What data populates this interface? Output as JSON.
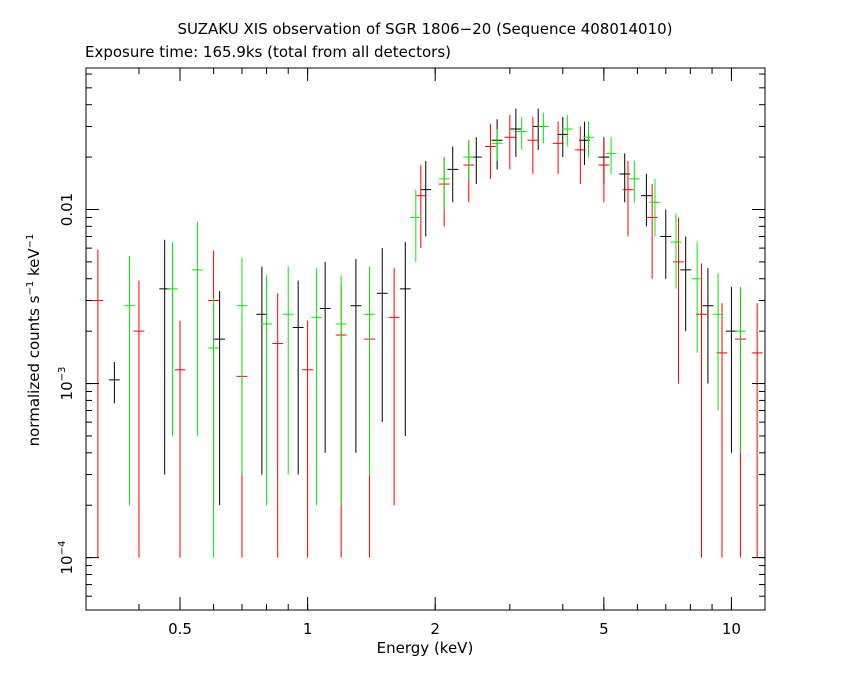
{
  "chart_data": {
    "type": "scatter",
    "title": "SUZAKU XIS observation of SGR 1806−20 (Sequence 408014010)",
    "subtitle": "Exposure time: 165.9ks (total from all detectors)",
    "xlabel": "Energy (keV)",
    "ylabel": {
      "main": "normalized counts s",
      "exp1": "−1",
      "mid": " keV",
      "exp2": "−1"
    },
    "x_scale": "log",
    "y_scale": "log",
    "xlim": [
      0.3,
      12.0
    ],
    "ylim": [
      5e-05,
      0.065
    ],
    "x_ticks": [
      {
        "value": 0.5,
        "label": "0.5"
      },
      {
        "value": 1,
        "label": "1"
      },
      {
        "value": 2,
        "label": "2"
      },
      {
        "value": 5,
        "label": "5"
      },
      {
        "value": 10,
        "label": "10"
      }
    ],
    "y_ticks": [
      {
        "value": 0.0001,
        "base": "10",
        "exp": "−4"
      },
      {
        "value": 0.001,
        "base": "10",
        "exp": "−3"
      },
      {
        "value": 0.01,
        "label": "0.01"
      }
    ],
    "series": [
      {
        "color": "#000000",
        "points": [
          [
            0.35,
            0.00105,
            0.00028
          ],
          [
            0.46,
            0.0035,
            0.0032
          ],
          [
            0.62,
            0.0018,
            0.0016
          ],
          [
            0.78,
            0.0025,
            0.0022
          ],
          [
            0.95,
            0.0021,
            0.0018
          ],
          [
            1.1,
            0.0027,
            0.0023
          ],
          [
            1.3,
            0.0028,
            0.0024
          ],
          [
            1.5,
            0.0033,
            0.0027
          ],
          [
            1.7,
            0.0035,
            0.003
          ],
          [
            1.9,
            0.013,
            0.006
          ],
          [
            2.2,
            0.017,
            0.006
          ],
          [
            2.5,
            0.02,
            0.006
          ],
          [
            2.8,
            0.025,
            0.008
          ],
          [
            3.1,
            0.029,
            0.009
          ],
          [
            3.5,
            0.03,
            0.008
          ],
          [
            4.0,
            0.027,
            0.007
          ],
          [
            4.5,
            0.025,
            0.007
          ],
          [
            5.0,
            0.02,
            0.006
          ],
          [
            5.6,
            0.016,
            0.005
          ],
          [
            6.3,
            0.012,
            0.004
          ],
          [
            7.0,
            0.007,
            0.003
          ],
          [
            7.8,
            0.0045,
            0.0025
          ],
          [
            8.8,
            0.0028,
            0.0018
          ],
          [
            10.0,
            0.002,
            0.0016
          ]
        ]
      },
      {
        "color": "#ff0000",
        "points": [
          [
            0.32,
            0.003,
            0.0029
          ],
          [
            0.4,
            0.002,
            0.0019
          ],
          [
            0.5,
            0.0012,
            0.0011
          ],
          [
            0.6,
            0.003,
            0.0028
          ],
          [
            0.7,
            0.0011,
            0.001
          ],
          [
            0.85,
            0.0017,
            0.0016
          ],
          [
            1.0,
            0.0012,
            0.0011
          ],
          [
            1.2,
            0.0019,
            0.0018
          ],
          [
            1.4,
            0.0018,
            0.0017
          ],
          [
            1.6,
            0.0024,
            0.0022
          ],
          [
            1.85,
            0.012,
            0.006
          ],
          [
            2.1,
            0.014,
            0.006
          ],
          [
            2.4,
            0.018,
            0.007
          ],
          [
            2.7,
            0.023,
            0.008
          ],
          [
            3.0,
            0.026,
            0.009
          ],
          [
            3.4,
            0.025,
            0.009
          ],
          [
            3.9,
            0.024,
            0.008
          ],
          [
            4.4,
            0.022,
            0.008
          ],
          [
            5.0,
            0.018,
            0.007
          ],
          [
            5.7,
            0.013,
            0.006
          ],
          [
            6.5,
            0.009,
            0.005
          ],
          [
            7.5,
            0.005,
            0.004
          ],
          [
            8.5,
            0.0025,
            0.0024
          ],
          [
            9.5,
            0.0015,
            0.0014
          ],
          [
            10.5,
            0.0018,
            0.0017
          ],
          [
            11.5,
            0.0015,
            0.0014
          ]
        ]
      },
      {
        "color": "#00ee00",
        "points": [
          [
            0.38,
            0.0028,
            0.0026
          ],
          [
            0.48,
            0.0035,
            0.003
          ],
          [
            0.55,
            0.0045,
            0.004
          ],
          [
            0.6,
            0.0016,
            0.0015
          ],
          [
            0.7,
            0.0028,
            0.0025
          ],
          [
            0.8,
            0.0022,
            0.002
          ],
          [
            0.9,
            0.0025,
            0.0022
          ],
          [
            1.05,
            0.0024,
            0.0022
          ],
          [
            1.2,
            0.0022,
            0.002
          ],
          [
            1.4,
            0.0025,
            0.0022
          ],
          [
            1.8,
            0.009,
            0.004
          ],
          [
            2.1,
            0.015,
            0.005
          ],
          [
            2.4,
            0.02,
            0.005
          ],
          [
            2.8,
            0.024,
            0.005
          ],
          [
            3.2,
            0.028,
            0.006
          ],
          [
            3.6,
            0.03,
            0.006
          ],
          [
            4.1,
            0.029,
            0.006
          ],
          [
            4.6,
            0.026,
            0.006
          ],
          [
            5.2,
            0.021,
            0.005
          ],
          [
            5.9,
            0.015,
            0.004
          ],
          [
            6.6,
            0.011,
            0.004
          ],
          [
            7.4,
            0.0065,
            0.003
          ],
          [
            8.3,
            0.004,
            0.0025
          ],
          [
            9.3,
            0.0025,
            0.0018
          ],
          [
            10.5,
            0.002,
            0.0016
          ]
        ]
      }
    ]
  }
}
